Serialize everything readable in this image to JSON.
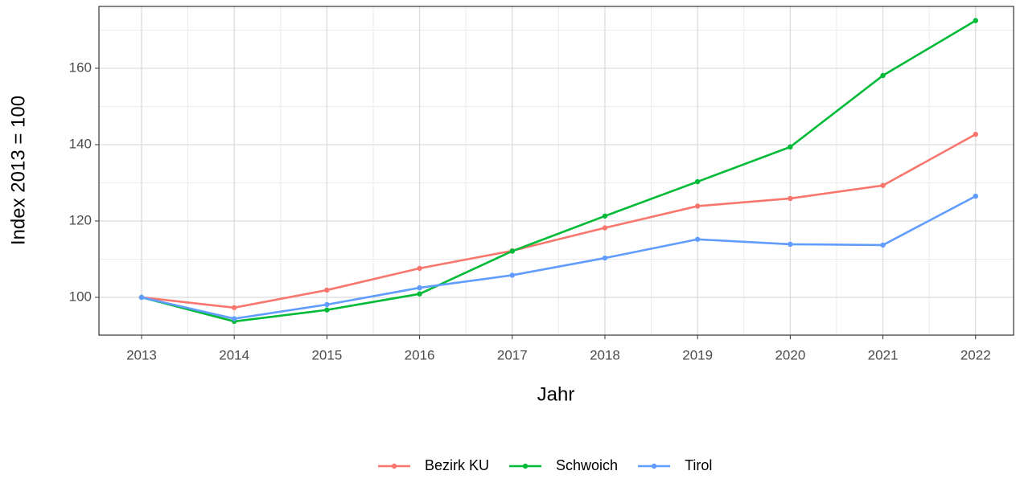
{
  "chart_data": {
    "type": "line",
    "x_label": "Jahr",
    "y_label": "Index  2013  = 100",
    "x": [
      2013,
      2014,
      2015,
      2016,
      2017,
      2018,
      2019,
      2020,
      2021,
      2022
    ],
    "series": [
      {
        "name": "Bezirk KU",
        "color": "#F8766D",
        "values": [
          100,
          97.3,
          101.9,
          107.6,
          112.2,
          118.2,
          123.9,
          125.9,
          129.3,
          142.7
        ]
      },
      {
        "name": "Schwoich",
        "color": "#00BA38",
        "values": [
          100,
          93.7,
          96.7,
          100.9,
          112.1,
          121.3,
          130.3,
          139.4,
          158.1,
          172.5
        ]
      },
      {
        "name": "Tirol",
        "color": "#619CFF",
        "values": [
          100,
          94.4,
          98.1,
          102.5,
          105.8,
          110.3,
          115.2,
          113.9,
          113.7,
          126.5
        ]
      }
    ],
    "xlim": [
      2012.54,
      2022.41
    ],
    "xticks": [
      2013,
      2014,
      2015,
      2016,
      2017,
      2018,
      2019,
      2020,
      2021,
      2022
    ],
    "x_minor_ticks": [
      2013.5,
      2014.5,
      2015.5,
      2016.5,
      2017.5,
      2018.5,
      2019.5,
      2020.5,
      2021.5
    ],
    "ylim": [
      90.1,
      176.2
    ],
    "yticks": [
      100,
      120,
      140,
      160
    ],
    "y_minor_ticks": [
      110,
      130,
      150,
      170
    ],
    "grid": true,
    "legend": "bottom"
  }
}
